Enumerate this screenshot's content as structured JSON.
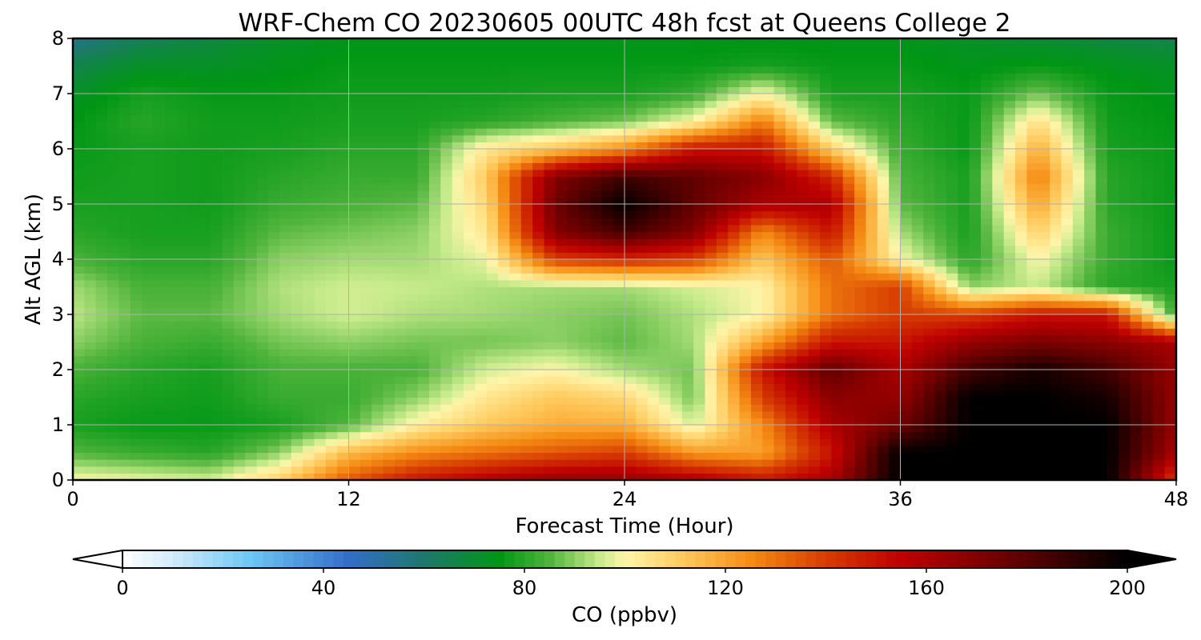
{
  "chart_data": {
    "type": "heatmap",
    "title": "WRF-Chem CO  20230605 00UTC 48h fcst at Queens College 2",
    "xlabel": "Forecast Time (Hour)",
    "ylabel": "Alt AGL (km)",
    "xlim": [
      0,
      48
    ],
    "ylim": [
      0,
      8
    ],
    "xticks": [
      "0",
      "12",
      "24",
      "36",
      "48"
    ],
    "yticks": [
      "0",
      "1",
      "2",
      "3",
      "4",
      "5",
      "6",
      "7",
      "8"
    ],
    "grid": true,
    "x": [
      0,
      3,
      6,
      9,
      12,
      15,
      18,
      21,
      24,
      27,
      30,
      33,
      36,
      39,
      42,
      45,
      48
    ],
    "y": [
      0,
      0.5,
      1,
      1.5,
      2,
      2.5,
      3,
      3.5,
      4,
      4.5,
      5,
      5.5,
      6,
      6.5,
      7,
      7.5,
      8
    ],
    "z": [
      [
        100,
        98,
        96,
        110,
        135,
        150,
        158,
        165,
        165,
        160,
        150,
        160,
        200,
        200,
        200,
        200,
        140
      ],
      [
        85,
        82,
        80,
        90,
        115,
        125,
        130,
        135,
        140,
        122,
        120,
        150,
        200,
        200,
        200,
        200,
        160
      ],
      [
        78,
        76,
        76,
        78,
        85,
        102,
        112,
        118,
        118,
        96,
        125,
        160,
        175,
        200,
        200,
        200,
        165
      ],
      [
        80,
        78,
        77,
        82,
        82,
        90,
        104,
        112,
        108,
        88,
        140,
        168,
        165,
        200,
        200,
        195,
        165
      ],
      [
        84,
        80,
        78,
        84,
        84,
        84,
        96,
        100,
        92,
        88,
        150,
        178,
        160,
        185,
        195,
        185,
        165
      ],
      [
        90,
        84,
        82,
        88,
        90,
        88,
        88,
        90,
        86,
        92,
        120,
        150,
        150,
        165,
        172,
        168,
        160
      ],
      [
        94,
        86,
        86,
        92,
        96,
        93,
        92,
        90,
        88,
        93,
        100,
        130,
        140,
        140,
        150,
        150,
        80
      ],
      [
        92,
        84,
        84,
        93,
        96,
        95,
        93,
        92,
        92,
        96,
        100,
        130,
        140,
        90,
        95,
        80,
        78
      ],
      [
        84,
        80,
        80,
        90,
        92,
        92,
        98,
        140,
        145,
        140,
        112,
        135,
        100,
        80,
        100,
        82,
        76
      ],
      [
        80,
        78,
        78,
        86,
        88,
        90,
        104,
        170,
        185,
        170,
        125,
        150,
        92,
        78,
        110,
        82,
        76
      ],
      [
        78,
        78,
        77,
        82,
        84,
        86,
        108,
        175,
        200,
        178,
        160,
        160,
        86,
        78,
        120,
        80,
        76
      ],
      [
        77,
        78,
        77,
        80,
        82,
        82,
        112,
        170,
        185,
        178,
        168,
        145,
        84,
        78,
        128,
        80,
        76
      ],
      [
        76,
        78,
        77,
        78,
        80,
        80,
        104,
        112,
        125,
        150,
        150,
        110,
        82,
        76,
        118,
        78,
        76
      ],
      [
        75,
        80,
        77,
        77,
        78,
        78,
        80,
        84,
        88,
        100,
        128,
        86,
        80,
        76,
        106,
        77,
        75
      ],
      [
        72,
        78,
        76,
        76,
        77,
        77,
        77,
        78,
        78,
        82,
        100,
        78,
        78,
        76,
        88,
        76,
        74
      ],
      [
        66,
        72,
        72,
        74,
        76,
        76,
        76,
        76,
        76,
        76,
        78,
        76,
        76,
        74,
        76,
        74,
        72
      ],
      [
        56,
        64,
        68,
        72,
        74,
        74,
        74,
        74,
        74,
        74,
        74,
        74,
        74,
        72,
        70,
        68,
        66
      ]
    ],
    "colorbar": {
      "label": "CO  (ppbv)",
      "ticks": [
        "0",
        "40",
        "80",
        "120",
        "160",
        "200"
      ],
      "range": [
        0,
        200
      ],
      "extend": "both"
    }
  }
}
